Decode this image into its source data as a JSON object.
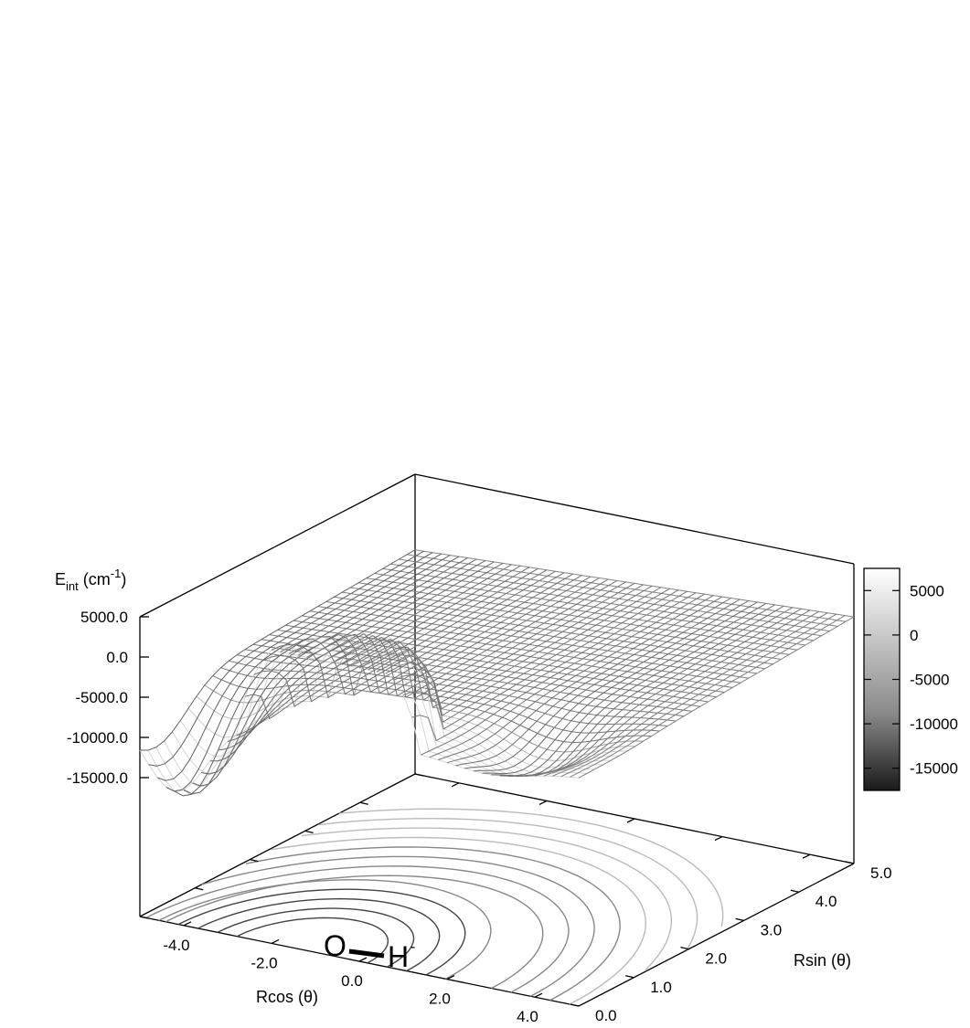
{
  "chart_data": {
    "type": "surface",
    "zlabel": {
      "main": "E",
      "sub": "int",
      "unit_pre": " (cm",
      "sup": "-1",
      "unit_post": ")"
    },
    "xlabel": "Rcos (θ)",
    "ylabel": "Rsin (θ)",
    "x_ticks": [
      "-4.0",
      "-2.0",
      "0.0",
      "2.0",
      "4.0"
    ],
    "x_tick_values": [
      -4,
      -2,
      0,
      2,
      4
    ],
    "y_ticks": [
      "0.0",
      "1.0",
      "2.0",
      "3.0",
      "4.0",
      "5.0"
    ],
    "y_tick_values": [
      0,
      1,
      2,
      3,
      4,
      5
    ],
    "z_ticks": [
      "5000.0",
      "0.0",
      "-5000.0",
      "-10000.0",
      "-15000.0"
    ],
    "z_tick_values": [
      5000,
      0,
      -5000,
      -10000,
      -15000
    ],
    "xlim": [
      -5,
      5
    ],
    "ylim": [
      0,
      5
    ],
    "zlim": [
      -15000,
      5000
    ],
    "colorbar": {
      "ticks": [
        "5000",
        "0",
        "-5000",
        "-10000",
        "-15000"
      ],
      "tick_values": [
        5000,
        0,
        -5000,
        -10000,
        -15000
      ],
      "range": [
        -17500,
        7500
      ],
      "colors": [
        "#1a1a1a",
        "#ffffff"
      ]
    },
    "molecule": {
      "atom1": "O",
      "atom2": "H",
      "charge": "-"
    },
    "grid": false,
    "contour_projection": true
  }
}
